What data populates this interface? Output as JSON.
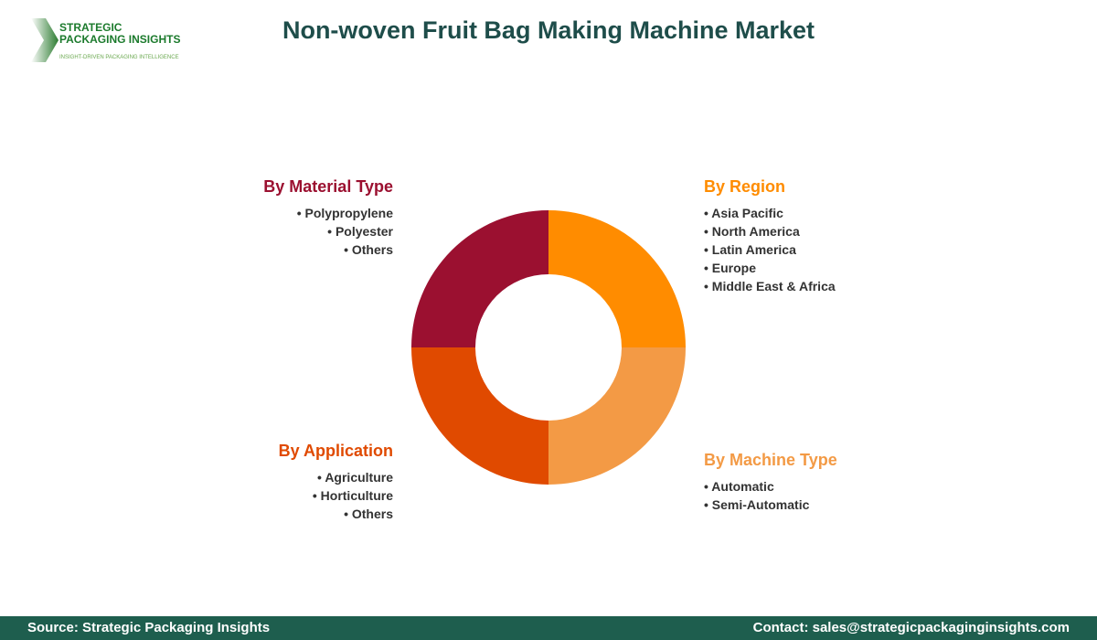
{
  "logo": {
    "line1": "STRATEGIC",
    "line2": "PACKAGING INSIGHTS",
    "tagline": "INSIGHT-DRIVEN PACKAGING INTELLIGENCE"
  },
  "title": "Non-woven Fruit Bag Making Machine Market",
  "segments": [
    {
      "heading": "By Region",
      "color": "#FF8C00",
      "items": [
        "Asia Pacific",
        "North America",
        "Latin America",
        "Europe",
        "Middle East & Africa"
      ]
    },
    {
      "heading": "By Machine Type",
      "color": "#F39A45",
      "items": [
        "Automatic",
        "Semi-Automatic"
      ]
    },
    {
      "heading": "By Application",
      "color": "#E04A00",
      "items": [
        "Agriculture",
        "Horticulture",
        "Others"
      ]
    },
    {
      "heading": "By Material Type",
      "color": "#9B1030",
      "items": [
        "Polypropylene",
        "Polyester",
        "Others"
      ]
    }
  ],
  "footer": {
    "source": "Source: Strategic Packaging Insights",
    "contact": "Contact: sales@strategicpackaginginsights.com"
  }
}
